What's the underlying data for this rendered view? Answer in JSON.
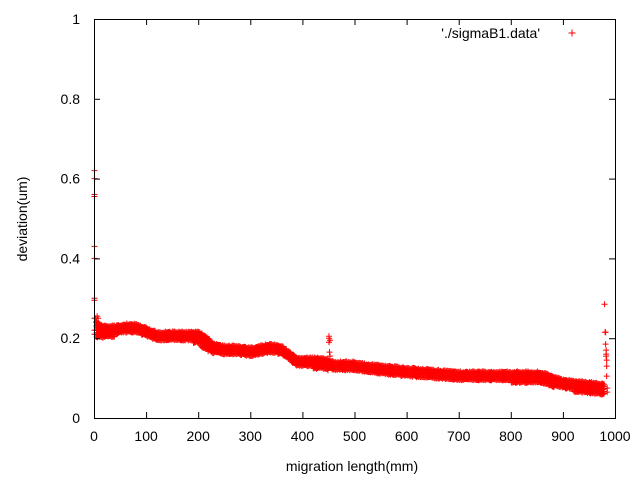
{
  "chart_data": {
    "type": "scatter",
    "marker": "plus",
    "grid": false,
    "legend_placement": "top-right",
    "xlabel": "migration length(mm)",
    "ylabel": "deviation(um)",
    "xlim": [
      0,
      1000
    ],
    "ylim": [
      0,
      1
    ],
    "xticks": [
      "0",
      "100",
      "200",
      "300",
      "400",
      "500",
      "600",
      "700",
      "800",
      "900",
      "1000"
    ],
    "yticks": [
      "0",
      "0.2",
      "0.4",
      "0.6",
      "0.8",
      "1"
    ],
    "series": [
      {
        "name": "'./sigmaB1.data'",
        "color": "#ff0000",
        "band": {
          "x": [
            5,
            20,
            40,
            60,
            80,
            100,
            120,
            150,
            180,
            200,
            215,
            230,
            250,
            275,
            300,
            320,
            340,
            360,
            375,
            390,
            400,
            420,
            440,
            460,
            480,
            500,
            520,
            560,
            600,
            650,
            700,
            750,
            800,
            850,
            870,
            900,
            940,
            980
          ],
          "upper": [
            0.24,
            0.23,
            0.23,
            0.235,
            0.235,
            0.225,
            0.215,
            0.215,
            0.215,
            0.215,
            0.205,
            0.185,
            0.18,
            0.18,
            0.175,
            0.18,
            0.185,
            0.18,
            0.165,
            0.15,
            0.15,
            0.15,
            0.15,
            0.14,
            0.14,
            0.14,
            0.135,
            0.13,
            0.125,
            0.12,
            0.115,
            0.115,
            0.115,
            0.115,
            0.11,
            0.095,
            0.09,
            0.085
          ],
          "lower": [
            0.2,
            0.2,
            0.205,
            0.21,
            0.21,
            0.2,
            0.19,
            0.19,
            0.195,
            0.185,
            0.17,
            0.16,
            0.16,
            0.16,
            0.155,
            0.16,
            0.16,
            0.155,
            0.14,
            0.13,
            0.13,
            0.125,
            0.12,
            0.12,
            0.115,
            0.115,
            0.11,
            0.11,
            0.1,
            0.095,
            0.095,
            0.09,
            0.09,
            0.085,
            0.08,
            0.075,
            0.06,
            0.055
          ]
        },
        "outliers": [
          [
            1,
            0.62
          ],
          [
            1,
            0.6
          ],
          [
            1,
            0.56
          ],
          [
            1,
            0.555
          ],
          [
            1,
            0.43
          ],
          [
            1,
            0.4
          ],
          [
            1,
            0.3
          ],
          [
            1,
            0.295
          ],
          [
            1,
            0.25
          ],
          [
            1,
            0.22
          ],
          [
            1,
            0.21
          ],
          [
            3,
            0.25
          ],
          [
            4,
            0.24
          ],
          [
            6,
            0.255
          ],
          [
            7,
            0.235
          ],
          [
            8,
            0.25
          ],
          [
            451,
            0.205
          ],
          [
            451,
            0.2
          ],
          [
            451,
            0.19
          ],
          [
            452,
            0.165
          ],
          [
            453,
            0.155
          ],
          [
            453,
            0.195
          ],
          [
            980,
            0.285
          ],
          [
            981,
            0.215
          ],
          [
            982,
            0.215
          ],
          [
            982,
            0.185
          ],
          [
            983,
            0.17
          ],
          [
            983,
            0.16
          ],
          [
            983,
            0.155
          ],
          [
            984,
            0.145
          ],
          [
            984,
            0.13
          ],
          [
            984,
            0.105
          ],
          [
            985,
            0.075
          ],
          [
            985,
            0.065
          ]
        ]
      }
    ]
  }
}
